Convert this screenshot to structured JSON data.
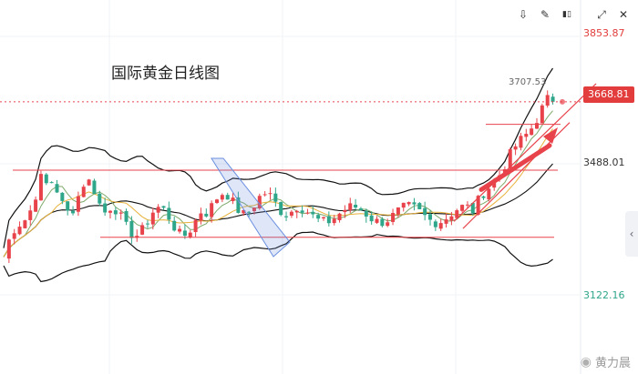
{
  "toolbar": {
    "buttons": [
      {
        "name": "indicator-button",
        "icon": "indicator-icon",
        "glyph": "⇩"
      },
      {
        "name": "draw-button",
        "icon": "pencil-icon",
        "glyph": "✎"
      },
      {
        "name": "candle-type-button",
        "icon": "candlestick-icon",
        "glyph": "▮▯"
      },
      {
        "name": "expand-button",
        "icon": "expand-icon",
        "glyph": "⤢"
      },
      {
        "name": "close-button",
        "icon": "close-icon",
        "glyph": "✕"
      }
    ]
  },
  "chart_data": {
    "type": "candlestick",
    "title": "国际黄金日线图",
    "y_ticks": [
      "3853.87",
      "3488.01",
      "3122.16"
    ],
    "y_tick_values": [
      3853.87,
      3488.01,
      3122.16
    ],
    "current_price_label": "3668.81",
    "current_price": 3668.81,
    "high_label": "3707.53",
    "high_value": 3707.53,
    "ylim": [
      3015,
      3880
    ],
    "colors": {
      "up": "#e8434b",
      "down": "#2fa68a",
      "upper_band": "#111111",
      "ma_short": "#7fa96b",
      "ma_mid": "#e8b13a",
      "annotation": "#e8434b",
      "channel": "#6b8fe0"
    }
  },
  "watermark": {
    "text": "黄力晨",
    "icon": "weibo-icon"
  },
  "side_handle": {
    "glyph": "‹",
    "icon": "chevron-left-icon"
  }
}
